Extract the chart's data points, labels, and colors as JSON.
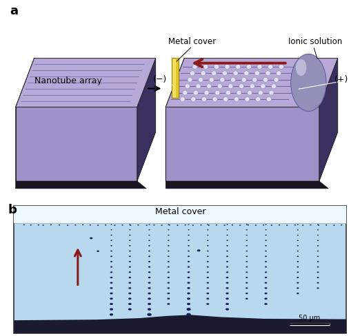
{
  "fig_width": 5.1,
  "fig_height": 4.89,
  "dpi": 100,
  "bg_color": "#ffffff",
  "panel_a_label": "a",
  "panel_b_label": "b",
  "label_fontsize": 13,
  "label_fontweight": "bold",
  "nanotube_label": "Nanotube array",
  "metal_cover_label": "Metal cover",
  "ionic_solution_label": "Ionic solution",
  "metal_cover_b_label": "Metal cover",
  "scale_bar_label": "50 μm",
  "minus_label": "(−)",
  "plus_label": "(+)",
  "purple_top": "#b8a8d8",
  "purple_face": "#a090c8",
  "purple_side": "#6855a0",
  "purple_bottom": "#3a3060",
  "groove_color": "#8070b0",
  "yellow_top": "#f0e060",
  "yellow_face": "#d4b800",
  "yellow_side": "#a08000",
  "blob_color": "#9090b8",
  "blob_highlight": "#c8c8e0",
  "arrow_red": "#8b1a1a",
  "bead_color": "#e0e0f0",
  "bead_edge": "#9090b0",
  "microscopy_bg": "#b8d8ee",
  "microscopy_top_bg": "#e8f4fc",
  "droplet_color": "#1a2060",
  "dark_bottom": "#1a1a30",
  "scale_bar_color": "#000000",
  "annotation_line_color": "#ffffff"
}
